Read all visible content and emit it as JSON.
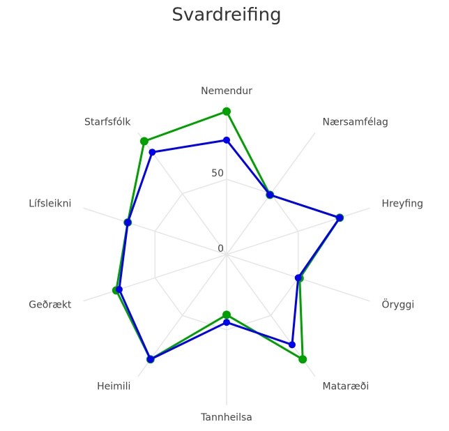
{
  "chart_data": {
    "type": "radar",
    "title": "Svardreifing",
    "categories": [
      "Nemendur",
      "Nærsamfélag",
      "Hreyfing",
      "Öryggi",
      "Mataræði",
      "Tannheilsa",
      "Heimili",
      "Geðrækt",
      "Lífsleikni",
      "Starfsfólk"
    ],
    "series": [
      {
        "color": "#00a000",
        "values": [
          95,
          49,
          79,
          51,
          86,
          40,
          86,
          77,
          69,
          93
        ]
      },
      {
        "color": "#0000ee",
        "values": [
          76,
          49,
          79,
          50,
          74,
          45,
          86,
          75,
          69,
          84
        ]
      }
    ],
    "ylim": [
      0,
      100
    ],
    "yticks": [
      0,
      50
    ],
    "grid": true
  }
}
